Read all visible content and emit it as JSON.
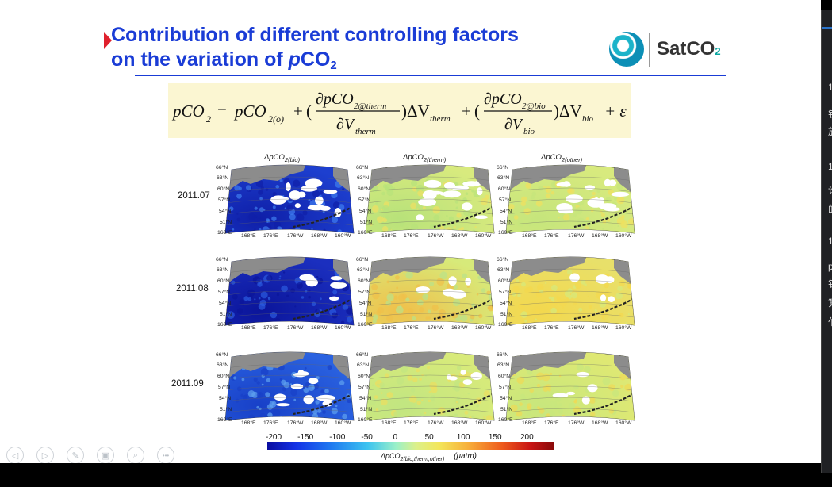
{
  "slide": {
    "title_line1": "Contribution of different controlling factors",
    "title_line2_prefix": "on the variation of ",
    "title_line2_var": "p",
    "title_line2_co": "CO",
    "title_line2_sub": "2",
    "logo_text": "SatCO",
    "logo_sub": "2",
    "equation": {
      "lhs": "pCO",
      "lhs_sub": "2",
      "eq": "=",
      "term0": "pCO",
      "term0_sub": "2(o)",
      "plus": "+",
      "open": "(",
      "num1": "∂pCO",
      "num1_sub": "2@therm",
      "den1": "∂V",
      "den1_sub": "therm",
      "close1": ")ΔV",
      "close1_sub": "therm",
      "num2": "∂pCO",
      "num2_sub": "2@bio",
      "den2": "∂V",
      "den2_sub": "bio",
      "close2": ")ΔV",
      "close2_sub": "bio",
      "tail": "+ ε"
    },
    "column_headers": [
      {
        "main": "ΔpCO",
        "sub": "2(bio)"
      },
      {
        "main": "ΔpCO",
        "sub": "2(therm)"
      },
      {
        "main": "ΔpCO",
        "sub": "2(other)"
      }
    ],
    "row_labels": [
      "2011.07",
      "2011.08",
      "2011.09"
    ],
    "lat_labels": [
      "66°N",
      "63°N",
      "60°N",
      "57°N",
      "54°N",
      "51°N"
    ],
    "lon_labels": [
      "160°E",
      "168°E",
      "176°E",
      "176°W",
      "168°W",
      "160°W"
    ],
    "colorbar": {
      "ticks": [
        "-200",
        "-150",
        "-100",
        "-50",
        "0",
        "50",
        "100",
        "150",
        "200"
      ],
      "label_main": "ΔpCO",
      "label_sub": "2(bio,therm,other)",
      "unit": "(μatm)"
    }
  },
  "side_panel": {
    "chars": [
      "1",
      "钅",
      "放",
      "1",
      "论",
      "的",
      "1",
      "p",
      "钅",
      "算",
      "伯"
    ]
  },
  "toolbar": {
    "icons": [
      "prev-icon",
      "next-icon",
      "pen-icon",
      "slides-icon",
      "zoom-icon",
      "more-icon"
    ],
    "glyphs": [
      "◁",
      "▷",
      "✎",
      "▣",
      "⌕",
      "•••"
    ]
  },
  "colors": {
    "title": "#1a3cd6",
    "marker": "#e0202c",
    "eq_bg": "#fbf6d2",
    "land": "#8c8c8c"
  }
}
